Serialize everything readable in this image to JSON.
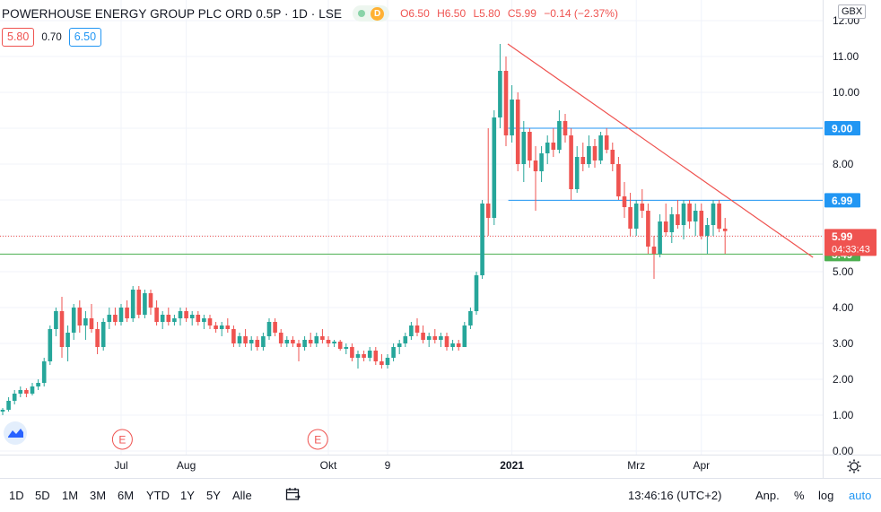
{
  "header": {
    "symbol": "POWERHOUSE ENERGY GROUP PLC ORD 0.5P · 1D · LSE",
    "badge": "D",
    "open": "O6.50",
    "high": "H6.50",
    "low": "L5.80",
    "close": "C5.99",
    "change": "−0.14 (−2.37%)"
  },
  "quote": {
    "bid": "5.80",
    "spread": "0.70",
    "ask": "6.50"
  },
  "currency": "GBX",
  "colors": {
    "up": "#26a69a",
    "down": "#ef5350",
    "trend": "#ef5350",
    "hline": "#2196f3",
    "support": "#4caf50"
  },
  "bottom_bar": {
    "ranges": [
      "1D",
      "5D",
      "1M",
      "3M",
      "6M",
      "YTD",
      "1Y",
      "5Y",
      "Alle"
    ],
    "time": "13:46:16 (UTC+2)",
    "adj": "Anp.",
    "percent": "%",
    "log": "log",
    "auto": "auto"
  },
  "chart_data": {
    "type": "candlestick",
    "ylim": [
      0,
      12.25
    ],
    "y_ticks": [
      "12.00",
      "11.00",
      "10.00",
      "9.00",
      "8.00",
      "7.00",
      "6.00",
      "5.00",
      "4.00",
      "3.00",
      "2.00",
      "1.00",
      "0.00"
    ],
    "x_ticks": [
      {
        "label": "Jul",
        "idx": 20
      },
      {
        "label": "Aug",
        "idx": 31
      },
      {
        "label": "Okt",
        "idx": 55
      },
      {
        "label": "9",
        "idx": 65
      },
      {
        "label": "2021",
        "idx": 86
      },
      {
        "label": "Mrz",
        "idx": 107
      },
      {
        "label": "Apr",
        "idx": 118
      }
    ],
    "events": [
      {
        "label": "E",
        "idx": 19
      },
      {
        "label": "E",
        "idx": 52
      }
    ],
    "horizontal_lines": [
      {
        "value": 9.0,
        "label": "9.00",
        "color": "#2196f3"
      },
      {
        "value": 6.99,
        "label": "6.99",
        "color": "#2196f3"
      },
      {
        "value": 5.49,
        "label": "5.49",
        "color": "#4caf50"
      }
    ],
    "last_price": {
      "value": 5.99,
      "label": "5.99",
      "countdown": "04:33:43"
    },
    "trendline": [
      {
        "idx": 85,
        "value": 11.35
      },
      {
        "idx": 132,
        "value": 4.8
      }
    ],
    "candles": [
      [
        1.1,
        1.2,
        1.0,
        1.15
      ],
      [
        1.15,
        1.5,
        1.1,
        1.4
      ],
      [
        1.4,
        1.7,
        1.3,
        1.6
      ],
      [
        1.6,
        1.8,
        1.5,
        1.7
      ],
      [
        1.7,
        1.75,
        1.5,
        1.6
      ],
      [
        1.6,
        1.9,
        1.55,
        1.8
      ],
      [
        1.8,
        2.0,
        1.7,
        1.9
      ],
      [
        1.9,
        2.6,
        1.8,
        2.5
      ],
      [
        2.5,
        3.5,
        2.4,
        3.4
      ],
      [
        3.4,
        4.0,
        3.2,
        3.9
      ],
      [
        3.9,
        4.3,
        2.6,
        2.9
      ],
      [
        2.9,
        3.5,
        2.5,
        3.3
      ],
      [
        3.3,
        4.1,
        3.1,
        4.0
      ],
      [
        4.0,
        4.2,
        3.3,
        3.5
      ],
      [
        3.5,
        3.9,
        3.1,
        3.7
      ],
      [
        3.7,
        4.1,
        3.3,
        3.4
      ],
      [
        3.4,
        3.6,
        2.7,
        2.9
      ],
      [
        2.9,
        3.7,
        2.8,
        3.6
      ],
      [
        3.6,
        4.0,
        3.4,
        3.8
      ],
      [
        3.8,
        4.0,
        3.5,
        3.6
      ],
      [
        3.6,
        4.1,
        3.5,
        4.0
      ],
      [
        4.0,
        4.2,
        3.6,
        3.7
      ],
      [
        3.7,
        4.6,
        3.6,
        4.5
      ],
      [
        4.5,
        4.6,
        3.7,
        3.8
      ],
      [
        3.8,
        4.5,
        3.7,
        4.4
      ],
      [
        4.4,
        4.5,
        3.8,
        4.0
      ],
      [
        4.0,
        4.2,
        3.5,
        3.6
      ],
      [
        3.6,
        3.9,
        3.4,
        3.8
      ],
      [
        3.8,
        4.0,
        3.5,
        3.6
      ],
      [
        3.6,
        3.8,
        3.5,
        3.7
      ],
      [
        3.7,
        4.0,
        3.5,
        3.9
      ],
      [
        3.9,
        4.0,
        3.6,
        3.7
      ],
      [
        3.7,
        3.9,
        3.5,
        3.8
      ],
      [
        3.8,
        3.9,
        3.5,
        3.6
      ],
      [
        3.6,
        3.8,
        3.4,
        3.7
      ],
      [
        3.7,
        3.8,
        3.4,
        3.5
      ],
      [
        3.5,
        3.6,
        3.3,
        3.4
      ],
      [
        3.4,
        3.6,
        3.2,
        3.5
      ],
      [
        3.5,
        3.7,
        3.3,
        3.4
      ],
      [
        3.4,
        3.5,
        2.9,
        3.0
      ],
      [
        3.0,
        3.3,
        2.9,
        3.2
      ],
      [
        3.2,
        3.4,
        2.9,
        3.0
      ],
      [
        3.0,
        3.2,
        2.8,
        3.1
      ],
      [
        3.1,
        3.2,
        2.8,
        2.9
      ],
      [
        2.9,
        3.3,
        2.8,
        3.2
      ],
      [
        3.2,
        3.7,
        3.1,
        3.6
      ],
      [
        3.6,
        3.7,
        3.2,
        3.3
      ],
      [
        3.3,
        3.4,
        2.9,
        3.0
      ],
      [
        3.0,
        3.2,
        2.9,
        3.1
      ],
      [
        3.1,
        3.2,
        2.9,
        3.0
      ],
      [
        3.0,
        3.1,
        2.5,
        2.9
      ],
      [
        2.9,
        3.2,
        2.8,
        3.1
      ],
      [
        3.1,
        3.3,
        2.9,
        3.0
      ],
      [
        3.0,
        3.3,
        2.9,
        3.2
      ],
      [
        3.2,
        3.4,
        3.0,
        3.1
      ],
      [
        3.1,
        3.2,
        2.9,
        3.0
      ],
      [
        3.0,
        3.1,
        2.9,
        3.05
      ],
      [
        3.05,
        3.1,
        2.8,
        2.85
      ],
      [
        2.85,
        3.0,
        2.7,
        2.9
      ],
      [
        2.9,
        3.0,
        2.5,
        2.6
      ],
      [
        2.6,
        2.8,
        2.3,
        2.7
      ],
      [
        2.7,
        2.8,
        2.5,
        2.6
      ],
      [
        2.6,
        2.9,
        2.5,
        2.8
      ],
      [
        2.8,
        2.9,
        2.4,
        2.5
      ],
      [
        2.5,
        2.7,
        2.3,
        2.4
      ],
      [
        2.4,
        2.7,
        2.3,
        2.6
      ],
      [
        2.6,
        3.0,
        2.5,
        2.9
      ],
      [
        2.9,
        3.1,
        2.7,
        3.0
      ],
      [
        3.0,
        3.3,
        2.9,
        3.2
      ],
      [
        3.2,
        3.6,
        3.1,
        3.5
      ],
      [
        3.5,
        3.7,
        3.2,
        3.3
      ],
      [
        3.3,
        3.5,
        3.0,
        3.1
      ],
      [
        3.1,
        3.3,
        2.9,
        3.2
      ],
      [
        3.2,
        3.4,
        3.0,
        3.1
      ],
      [
        3.1,
        3.3,
        2.9,
        3.2
      ],
      [
        3.2,
        3.3,
        2.8,
        2.9
      ],
      [
        2.9,
        3.1,
        2.8,
        3.0
      ],
      [
        3.0,
        3.1,
        2.8,
        2.9
      ],
      [
        2.9,
        3.6,
        2.9,
        3.5
      ],
      [
        3.5,
        4.0,
        3.4,
        3.9
      ],
      [
        3.9,
        5.0,
        3.8,
        4.9
      ],
      [
        4.9,
        7.0,
        4.8,
        6.9
      ],
      [
        6.9,
        9.0,
        6.0,
        6.5
      ],
      [
        6.5,
        9.5,
        6.3,
        9.3
      ],
      [
        9.3,
        11.35,
        9.0,
        10.6
      ],
      [
        10.6,
        11.0,
        8.5,
        8.8
      ],
      [
        8.8,
        10.2,
        8.6,
        9.8
      ],
      [
        9.8,
        10.0,
        7.8,
        8.0
      ],
      [
        8.0,
        9.2,
        7.5,
        8.9
      ],
      [
        8.9,
        9.0,
        7.9,
        8.1
      ],
      [
        8.1,
        8.5,
        6.7,
        7.8
      ],
      [
        7.8,
        8.5,
        7.5,
        8.3
      ],
      [
        8.3,
        8.8,
        8.0,
        8.6
      ],
      [
        8.6,
        9.0,
        8.2,
        8.4
      ],
      [
        8.4,
        9.5,
        8.3,
        9.2
      ],
      [
        9.2,
        9.4,
        8.6,
        8.8
      ],
      [
        8.8,
        9.0,
        7.0,
        7.3
      ],
      [
        7.3,
        8.5,
        7.2,
        8.2
      ],
      [
        8.2,
        8.6,
        7.8,
        8.0
      ],
      [
        8.0,
        8.8,
        7.9,
        8.5
      ],
      [
        8.5,
        8.7,
        7.9,
        8.1
      ],
      [
        8.1,
        8.9,
        8.0,
        8.8
      ],
      [
        8.8,
        9.0,
        8.3,
        8.4
      ],
      [
        8.4,
        8.6,
        7.8,
        8.0
      ],
      [
        8.0,
        8.2,
        7.0,
        7.1
      ],
      [
        7.1,
        7.5,
        6.5,
        6.8
      ],
      [
        6.8,
        7.2,
        6.0,
        6.2
      ],
      [
        6.2,
        7.0,
        6.0,
        6.9
      ],
      [
        6.9,
        7.3,
        6.5,
        6.7
      ],
      [
        6.7,
        6.9,
        5.5,
        5.7
      ],
      [
        5.7,
        6.0,
        4.8,
        5.5
      ],
      [
        5.5,
        6.6,
        5.4,
        6.4
      ],
      [
        6.4,
        6.9,
        6.0,
        6.1
      ],
      [
        6.1,
        6.8,
        5.8,
        6.6
      ],
      [
        6.6,
        7.0,
        6.2,
        6.3
      ],
      [
        6.3,
        7.0,
        5.9,
        6.9
      ],
      [
        6.9,
        7.0,
        6.2,
        6.4
      ],
      [
        6.4,
        6.9,
        6.0,
        6.7
      ],
      [
        6.7,
        6.9,
        5.9,
        6.0
      ],
      [
        6.0,
        6.5,
        5.5,
        6.3
      ],
      [
        6.3,
        7.0,
        6.0,
        6.9
      ],
      [
        6.9,
        7.0,
        6.1,
        6.2
      ],
      [
        6.2,
        6.5,
        5.5,
        6.13
      ]
    ]
  }
}
